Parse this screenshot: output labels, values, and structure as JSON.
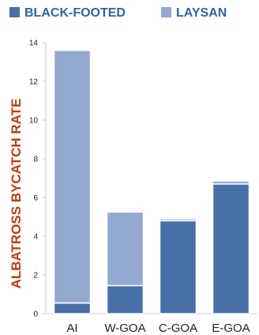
{
  "chart_data": {
    "type": "bar",
    "stacked": true,
    "categories": [
      "AI",
      "W-GOA",
      "C-GOA",
      "E-GOA"
    ],
    "series": [
      {
        "name": "BLACK-FOOTED",
        "color": "#4670a6",
        "values": [
          0.55,
          1.45,
          4.8,
          6.7
        ]
      },
      {
        "name": "LAYSAN",
        "color": "#93a9d1",
        "values": [
          13.05,
          3.8,
          0.1,
          0.15
        ]
      }
    ],
    "ylabel": "ALBATROSS BYCATCH RATE",
    "ylabel_color": "#c23b12",
    "legend_color": "#2f64a4",
    "ylim": [
      0,
      14
    ],
    "yticks": [
      0,
      2,
      4,
      6,
      8,
      10,
      12,
      14
    ],
    "ytick_labels": [
      "0",
      "2",
      "4",
      "6",
      "8",
      "10",
      "12",
      "14"
    ],
    "grid": false,
    "legend_position": "top"
  }
}
